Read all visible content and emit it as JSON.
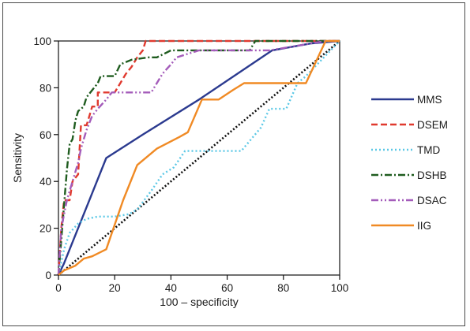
{
  "chart_data": {
    "type": "line",
    "title": "",
    "xlabel": "100 – specificity",
    "ylabel": "Sensitivity",
    "xlim": [
      0,
      100
    ],
    "ylim": [
      0,
      100
    ],
    "xticks": [
      0,
      20,
      40,
      60,
      80,
      100
    ],
    "yticks": [
      0,
      20,
      40,
      60,
      80,
      100
    ],
    "grid": false,
    "legend_position": "right",
    "series": [
      {
        "name": "MMS",
        "color": "#2b3a8f",
        "dash": "solid",
        "points": [
          [
            0,
            0
          ],
          [
            2,
            5
          ],
          [
            7,
            20
          ],
          [
            12,
            35
          ],
          [
            17,
            50
          ],
          [
            30,
            60
          ],
          [
            50,
            75
          ],
          [
            76,
            96
          ],
          [
            90,
            99
          ],
          [
            100,
            100
          ]
        ]
      },
      {
        "name": "DSEM",
        "color": "#e03a2f",
        "dash": "dashed",
        "points": [
          [
            0,
            0
          ],
          [
            1,
            20
          ],
          [
            2,
            32
          ],
          [
            4,
            32
          ],
          [
            5,
            40
          ],
          [
            7,
            43
          ],
          [
            8,
            64
          ],
          [
            10,
            64
          ],
          [
            11,
            68
          ],
          [
            12,
            72
          ],
          [
            14,
            72
          ],
          [
            14,
            78
          ],
          [
            20,
            78
          ],
          [
            22,
            82
          ],
          [
            24,
            86
          ],
          [
            26,
            89
          ],
          [
            28,
            93
          ],
          [
            30,
            96
          ],
          [
            31,
            100
          ],
          [
            70,
            100
          ],
          [
            100,
            100
          ]
        ]
      },
      {
        "name": "TMD",
        "color": "#5bc8e6",
        "dash": "dotted",
        "points": [
          [
            0,
            0
          ],
          [
            2,
            11
          ],
          [
            4,
            18
          ],
          [
            7,
            22
          ],
          [
            10,
            24
          ],
          [
            14,
            25
          ],
          [
            20,
            25
          ],
          [
            25,
            26
          ],
          [
            28,
            28
          ],
          [
            33,
            36
          ],
          [
            37,
            43
          ],
          [
            41,
            46
          ],
          [
            45,
            53
          ],
          [
            55,
            53
          ],
          [
            65,
            53
          ],
          [
            72,
            63
          ],
          [
            75,
            71
          ],
          [
            81,
            71
          ],
          [
            85,
            82
          ],
          [
            88,
            85
          ],
          [
            92,
            90
          ],
          [
            100,
            100
          ]
        ]
      },
      {
        "name": "DSHB",
        "color": "#1f5c1f",
        "dash": "dashdot",
        "points": [
          [
            0,
            0
          ],
          [
            1,
            15
          ],
          [
            2,
            30
          ],
          [
            3,
            45
          ],
          [
            4,
            56
          ],
          [
            5,
            58
          ],
          [
            6,
            66
          ],
          [
            7,
            70
          ],
          [
            9,
            72
          ],
          [
            10,
            76
          ],
          [
            12,
            79
          ],
          [
            14,
            82
          ],
          [
            15,
            85
          ],
          [
            20,
            85
          ],
          [
            22,
            90
          ],
          [
            26,
            92
          ],
          [
            32,
            93
          ],
          [
            35,
            93
          ],
          [
            40,
            96
          ],
          [
            68,
            96
          ],
          [
            70,
            100
          ],
          [
            100,
            100
          ]
        ]
      },
      {
        "name": "DSAC",
        "color": "#a45cba",
        "dash": "dashdotdot",
        "points": [
          [
            0,
            0
          ],
          [
            1,
            20
          ],
          [
            3,
            32
          ],
          [
            5,
            40
          ],
          [
            7,
            48
          ],
          [
            8,
            54
          ],
          [
            9,
            58
          ],
          [
            10,
            62
          ],
          [
            12,
            68
          ],
          [
            14,
            71
          ],
          [
            17,
            75
          ],
          [
            19,
            78
          ],
          [
            25,
            78
          ],
          [
            33,
            78
          ],
          [
            37,
            86
          ],
          [
            40,
            90
          ],
          [
            42,
            93
          ],
          [
            50,
            96
          ],
          [
            75,
            96
          ],
          [
            95,
            100
          ],
          [
            100,
            100
          ]
        ]
      },
      {
        "name": "IIG",
        "color": "#f08a24",
        "dash": "solid",
        "points": [
          [
            0,
            0
          ],
          [
            2,
            2
          ],
          [
            6,
            4
          ],
          [
            9,
            7
          ],
          [
            12,
            8
          ],
          [
            17,
            11
          ],
          [
            23,
            32
          ],
          [
            28,
            47
          ],
          [
            35,
            54
          ],
          [
            43,
            59
          ],
          [
            46,
            61
          ],
          [
            51,
            75
          ],
          [
            57,
            75
          ],
          [
            62,
            79
          ],
          [
            66,
            82
          ],
          [
            79,
            82
          ],
          [
            88,
            82
          ],
          [
            95,
            100
          ],
          [
            100,
            100
          ]
        ]
      },
      {
        "name": "",
        "color": "#111111",
        "dash": "dense-dotted",
        "points": [
          [
            0,
            0
          ],
          [
            100,
            100
          ]
        ]
      }
    ]
  }
}
